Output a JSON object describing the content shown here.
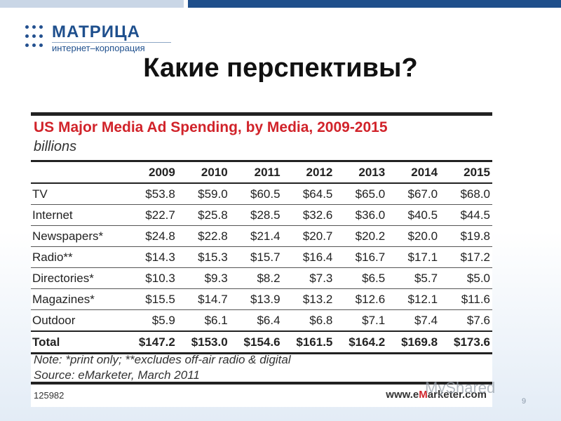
{
  "logo": {
    "name": "МАТРИЦА",
    "subtitle": "интернет–корпорация"
  },
  "slide": {
    "title": "Какие перспективы?",
    "page_number": "9",
    "watermark": "MyShared"
  },
  "chart": {
    "title": "US Major Media Ad Spending, by Media, 2009-2015",
    "unit": "billions",
    "note": "Note: *print only; **excludes off-air radio & digital",
    "source": "Source: eMarketer, March 2011",
    "code": "125982",
    "brand_prefix": "www.e",
    "brand_accent": "M",
    "brand_suffix": "arketer.com"
  },
  "chart_data": {
    "type": "table",
    "title": "US Major Media Ad Spending, by Media, 2009-2015",
    "unit": "billions",
    "columns": [
      "2009",
      "2010",
      "2011",
      "2012",
      "2013",
      "2014",
      "2015"
    ],
    "rows": [
      {
        "label": "TV",
        "values": [
          "$53.8",
          "$59.0",
          "$60.5",
          "$64.5",
          "$65.0",
          "$67.0",
          "$68.0"
        ]
      },
      {
        "label": "Internet",
        "values": [
          "$22.7",
          "$25.8",
          "$28.5",
          "$32.6",
          "$36.0",
          "$40.5",
          "$44.5"
        ]
      },
      {
        "label": "Newspapers*",
        "values": [
          "$24.8",
          "$22.8",
          "$21.4",
          "$20.7",
          "$20.2",
          "$20.0",
          "$19.8"
        ]
      },
      {
        "label": "Radio**",
        "values": [
          "$14.3",
          "$15.3",
          "$15.7",
          "$16.4",
          "$16.7",
          "$17.1",
          "$17.2"
        ]
      },
      {
        "label": "Directories*",
        "values": [
          "$10.3",
          "$9.3",
          "$8.2",
          "$7.3",
          "$6.5",
          "$5.7",
          "$5.0"
        ]
      },
      {
        "label": "Magazines*",
        "values": [
          "$15.5",
          "$14.7",
          "$13.9",
          "$13.2",
          "$12.6",
          "$12.1",
          "$11.6"
        ]
      },
      {
        "label": "Outdoor",
        "values": [
          "$5.9",
          "$6.1",
          "$6.4",
          "$6.8",
          "$7.1",
          "$7.4",
          "$7.6"
        ]
      }
    ],
    "total": {
      "label": "Total",
      "values": [
        "$147.2",
        "$153.0",
        "$154.6",
        "$161.5",
        "$164.2",
        "$169.8",
        "$173.6"
      ]
    }
  },
  "colors": {
    "brand_blue": "#1e4f8d",
    "chart_title_red": "#d1232a"
  }
}
